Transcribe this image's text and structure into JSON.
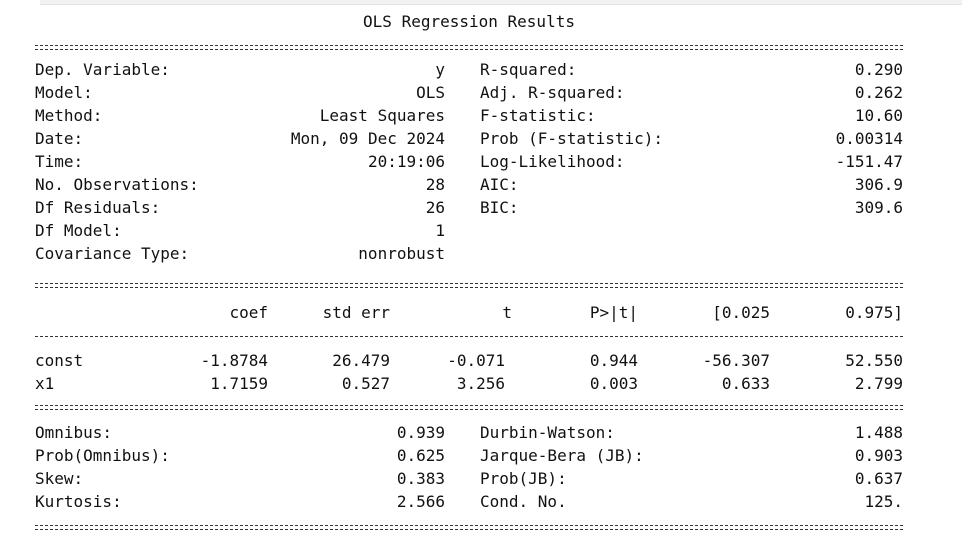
{
  "header": {
    "title": "OLS Regression Results"
  },
  "summary": {
    "rows": [
      [
        "Dep. Variable:",
        "y",
        "R-squared:",
        "0.290"
      ],
      [
        "Model:",
        "OLS",
        "Adj. R-squared:",
        "0.262"
      ],
      [
        "Method:",
        "Least Squares",
        "F-statistic:",
        "10.60"
      ],
      [
        "Date:",
        "Mon, 09 Dec 2024",
        "Prob (F-statistic):",
        "0.00314"
      ],
      [
        "Time:",
        "20:19:06",
        "Log-Likelihood:",
        "-151.47"
      ],
      [
        "No. Observations:",
        "28",
        "AIC:",
        "306.9"
      ],
      [
        "Df Residuals:",
        "26",
        "BIC:",
        "309.6"
      ],
      [
        "Df Model:",
        "1"
      ],
      [
        "Covariance Type:",
        "nonrobust"
      ]
    ]
  },
  "coefficients": {
    "columns": [
      "coef",
      "std err",
      "t",
      "P>|t|",
      "[0.025",
      "0.975]"
    ],
    "rows": [
      [
        "const",
        "-1.8784",
        "26.479",
        "-0.071",
        "0.944",
        "-56.307",
        "52.550"
      ],
      [
        "x1",
        "1.7159",
        "0.527",
        "3.256",
        "0.003",
        "0.633",
        "2.799"
      ]
    ]
  },
  "diagnostics": {
    "rows": [
      [
        "Omnibus:",
        "0.939",
        "Durbin-Watson:",
        "1.488"
      ],
      [
        "Prob(Omnibus):",
        "0.625",
        "Jarque-Bera (JB):",
        "0.903"
      ],
      [
        "Skew:",
        "0.383",
        "Prob(JB):",
        "0.637"
      ],
      [
        "Kurtosis:",
        "2.566",
        "Cond. No.",
        "125."
      ]
    ]
  }
}
